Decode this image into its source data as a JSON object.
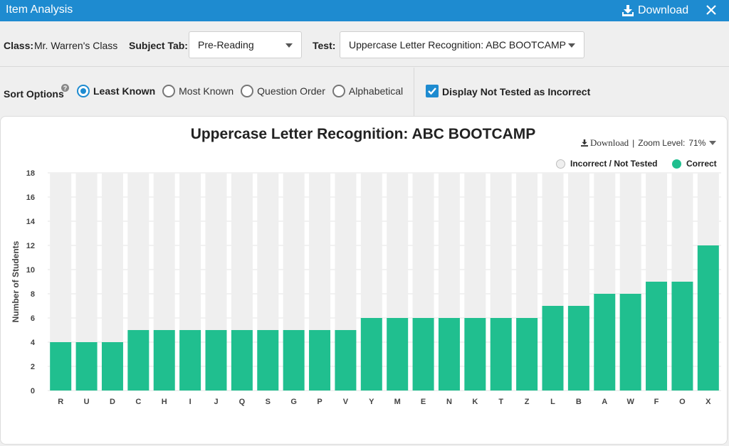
{
  "window": {
    "title": "Item Analysis",
    "download_label": "Download"
  },
  "filters": {
    "class_label": "Class:",
    "class_value": "Mr. Warren's Class",
    "subject_label": "Subject Tab:",
    "subject_value": "Pre-Reading",
    "test_label": "Test:",
    "test_value": "Uppercase Letter Recognition: ABC BOOTCAMP"
  },
  "sort": {
    "label": "Sort Options",
    "help": "?",
    "options": [
      "Least Known",
      "Most Known",
      "Question Order",
      "Alphabetical"
    ],
    "selected": "Least Known",
    "display_checkbox_label": "Display Not Tested as Incorrect",
    "display_checkbox_checked": true
  },
  "chart_tools": {
    "download_label": "Download",
    "separator": "|",
    "zoom_label": "Zoom Level:",
    "zoom_value": "71%"
  },
  "colors": {
    "header": "#1e8bd0",
    "correct": "#20bf8f",
    "incorrect": "#efefef"
  },
  "chart_data": {
    "type": "bar",
    "stacked": true,
    "title": "Uppercase Letter Recognition: ABC BOOTCAMP",
    "xlabel": "",
    "ylabel": "Number of Students",
    "ylim": [
      0,
      18
    ],
    "yticks": [
      0,
      2,
      4,
      6,
      8,
      10,
      12,
      14,
      16,
      18
    ],
    "grid": true,
    "legend_position": "top-right",
    "categories": [
      "R",
      "U",
      "D",
      "C",
      "H",
      "I",
      "J",
      "Q",
      "S",
      "G",
      "P",
      "V",
      "Y",
      "M",
      "E",
      "N",
      "K",
      "T",
      "Z",
      "L",
      "B",
      "A",
      "W",
      "F",
      "O",
      "X"
    ],
    "series": [
      {
        "name": "Correct",
        "color": "#20bf8f",
        "values": [
          4,
          4,
          4,
          5,
          5,
          5,
          5,
          5,
          5,
          5,
          5,
          5,
          6,
          6,
          6,
          6,
          6,
          6,
          6,
          7,
          7,
          8,
          8,
          9,
          9,
          12
        ]
      },
      {
        "name": "Incorrect / Not Tested",
        "color": "#efefef",
        "values": [
          14,
          14,
          14,
          13,
          13,
          13,
          13,
          13,
          13,
          13,
          13,
          13,
          12,
          12,
          12,
          12,
          12,
          12,
          12,
          11,
          11,
          10,
          10,
          9,
          9,
          6
        ]
      }
    ]
  }
}
